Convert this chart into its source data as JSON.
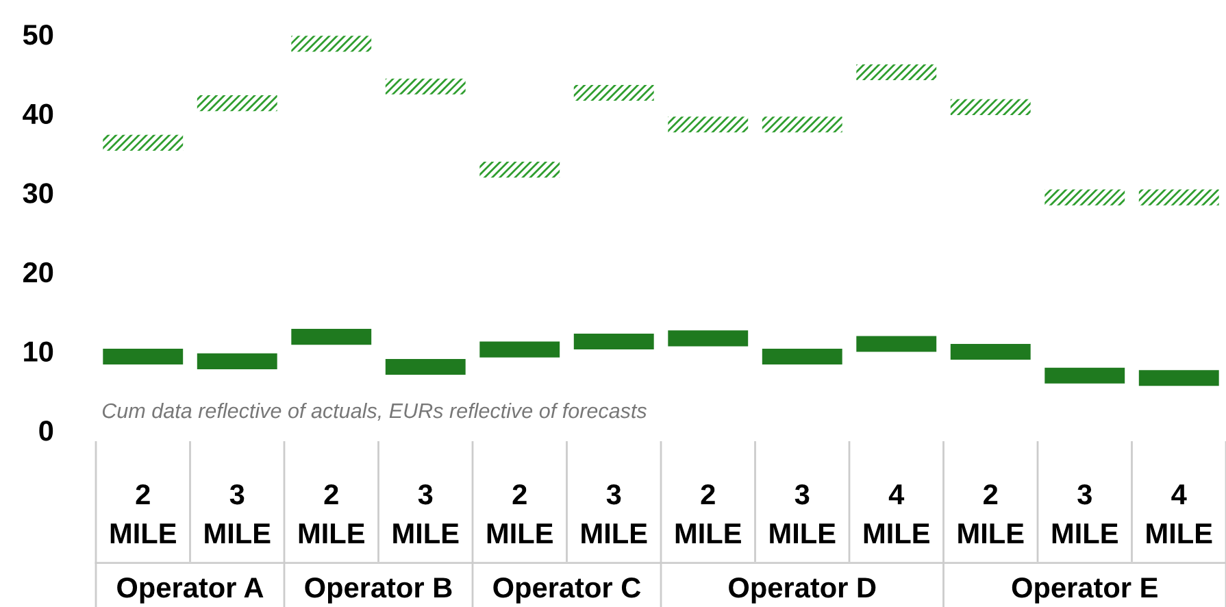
{
  "chart_data": {
    "type": "bar",
    "categories": [
      "2\nMILE",
      "3\nMILE",
      "2\nMILE",
      "3\nMILE",
      "2\nMILE",
      "3\nMILE",
      "2\nMILE",
      "3\nMILE",
      "4\nMILE",
      "2\nMILE",
      "3\nMILE",
      "4\nMILE"
    ],
    "series": [
      {
        "color": "#1f7a1f",
        "values": [
          2,
          2,
          2,
          2,
          2,
          2,
          2,
          2,
          2,
          2,
          2,
          2
        ],
        "base": [
          8.3,
          7.7,
          10.8,
          7.0,
          9.2,
          10.2,
          10.6,
          8.3,
          9.9,
          8.9,
          5.9,
          5.6
        ]
      },
      {
        "color": "#2f9e2f",
        "values": [
          2,
          2,
          2,
          2,
          2,
          2,
          2,
          2,
          2,
          2,
          2,
          2
        ],
        "base": [
          35.3,
          40.3,
          47.8,
          42.4,
          31.9,
          41.6,
          37.6,
          37.6,
          44.2,
          39.8,
          28.4,
          28.4
        ]
      }
    ],
    "ylim": [
      0,
      50
    ],
    "yticks": [
      0,
      10,
      20,
      30,
      40,
      50
    ],
    "annotations": [
      "Cum data reflective of actuals, EURs reflective of forecasts",
      "Operator A",
      "Operator B",
      "Operator C",
      "Operator D",
      "Operator E"
    ],
    "grid": false,
    "legend": false
  }
}
